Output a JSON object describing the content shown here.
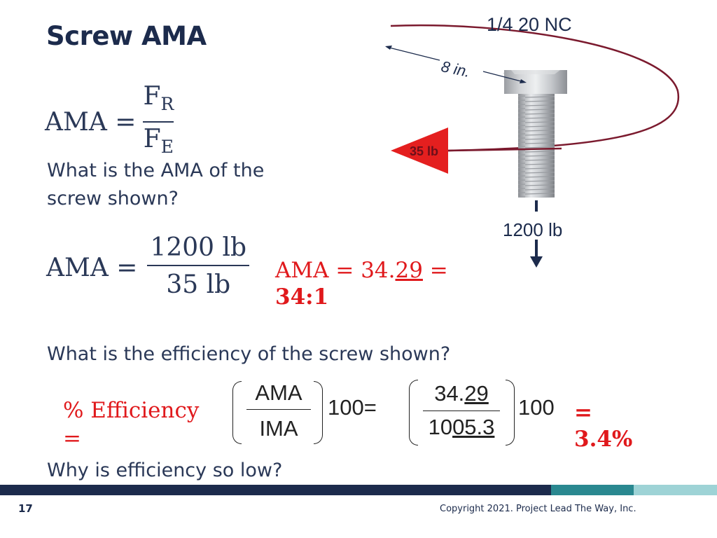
{
  "slide": {
    "title": "Screw AMA",
    "page_number": "17",
    "copyright": "Copyright 2021. Project Lead The Way, Inc."
  },
  "formula1": {
    "lhs": "AMA =",
    "numerator": "F",
    "numerator_sub": "R",
    "denominator": "F",
    "denominator_sub": "E"
  },
  "question1": "What is the AMA of the screw shown?",
  "calc1": {
    "lhs": "AMA =",
    "numerator": "1200 lb",
    "denominator": "35 lb",
    "result_prefix": "AMA = 34.",
    "result_underlined": "29",
    "result_suffix": " =",
    "result_ratio": "34:1"
  },
  "question2": "What is the efficiency of the screw shown?",
  "efficiency": {
    "label": "% Efficiency",
    "label_eq": "=",
    "frac_num": "AMA",
    "frac_den": "IMA",
    "times": "100=",
    "num2_prefix": "34.",
    "num2_underlined": "29",
    "den2_prefix": "10",
    "den2_underlined": "05.3",
    "times2": "100",
    "result_eq": "=",
    "result": "3.4%"
  },
  "question3": "Why is efficiency so low?",
  "diagram": {
    "thread_label": "1/4 20 NC",
    "radius_label": "8 in.",
    "effort_label": "35 lb",
    "load_label": "1200 lb"
  },
  "colors": {
    "title_navy": "#1c2b4c",
    "text_navy": "#2a3857",
    "answer_red": "#e0191c",
    "effort_arrow_red": "#e41f1f",
    "orbit_line": "#7b1a2e",
    "band_navy": "#1c2b4c",
    "band_teal": "#2a8890",
    "band_light": "#9ed3d6"
  }
}
